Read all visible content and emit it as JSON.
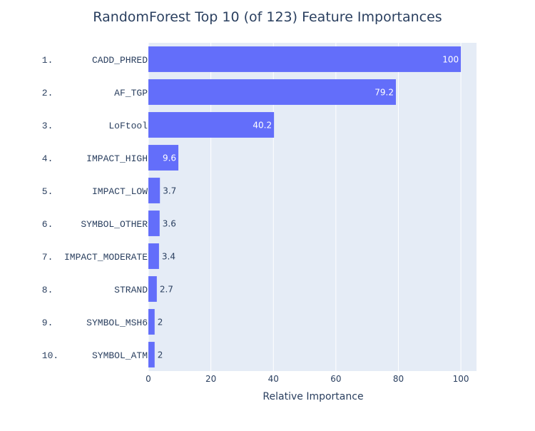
{
  "chart_data": {
    "type": "bar",
    "orientation": "horizontal",
    "title": "RandomForest Top 10 (of 123) Feature Importances",
    "xlabel": "Relative Importance",
    "ylabel": "",
    "xlim": [
      0,
      105
    ],
    "x_ticks": [
      0,
      20,
      40,
      60,
      80,
      100
    ],
    "grid": true,
    "categories": [
      "1.       CADD_PHRED",
      "2.           AF_TGP",
      "3.          LoFtool",
      "4.      IMPACT_HIGH",
      "5.       IMPACT_LOW",
      "6.     SYMBOL_OTHER",
      "7.  IMPACT_MODERATE",
      "8.           STRAND",
      "9.      SYMBOL_MSH6",
      "10.      SYMBOL_ATM"
    ],
    "values": [
      100,
      79.2,
      40.2,
      9.6,
      3.7,
      3.6,
      3.4,
      2.7,
      2,
      2
    ],
    "data_labels": [
      "100",
      "79.2",
      "40.2",
      "9.6",
      "3.7",
      "3.6",
      "3.4",
      "2.7",
      "2",
      "2"
    ],
    "colors": {
      "bar": "#636efa",
      "plot_bg": "#e5ecf6",
      "grid": "#ffffff",
      "text": "#2a3f5f"
    }
  }
}
